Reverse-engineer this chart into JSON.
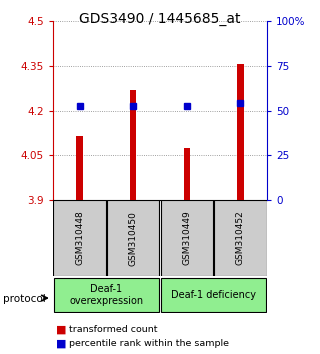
{
  "title": "GDS3490 / 1445685_at",
  "samples": [
    "GSM310448",
    "GSM310450",
    "GSM310449",
    "GSM310452"
  ],
  "red_values": [
    4.115,
    4.27,
    4.075,
    4.355
  ],
  "blue_values": [
    4.215,
    4.215,
    4.215,
    4.225
  ],
  "ylim_left": [
    3.9,
    4.5
  ],
  "left_ticks": [
    3.9,
    4.05,
    4.2,
    4.35,
    4.5
  ],
  "left_tick_labels": [
    "3.9",
    "4.05",
    "4.2",
    "4.35",
    "4.5"
  ],
  "right_ticks": [
    0,
    25,
    50,
    75,
    100
  ],
  "right_tick_labels": [
    "0",
    "25",
    "50",
    "75",
    "100%"
  ],
  "groups": [
    {
      "label": "Deaf-1\noverexpression",
      "color": "#90EE90"
    },
    {
      "label": "Deaf-1 deficiency",
      "color": "#90EE90"
    }
  ],
  "bar_color": "#cc0000",
  "dot_color": "#0000cc",
  "bar_width": 0.12,
  "protocol_label": "protocol",
  "legend_red": "transformed count",
  "legend_blue": "percentile rank within the sample",
  "sample_box_color": "#cccccc",
  "title_fontsize": 10
}
